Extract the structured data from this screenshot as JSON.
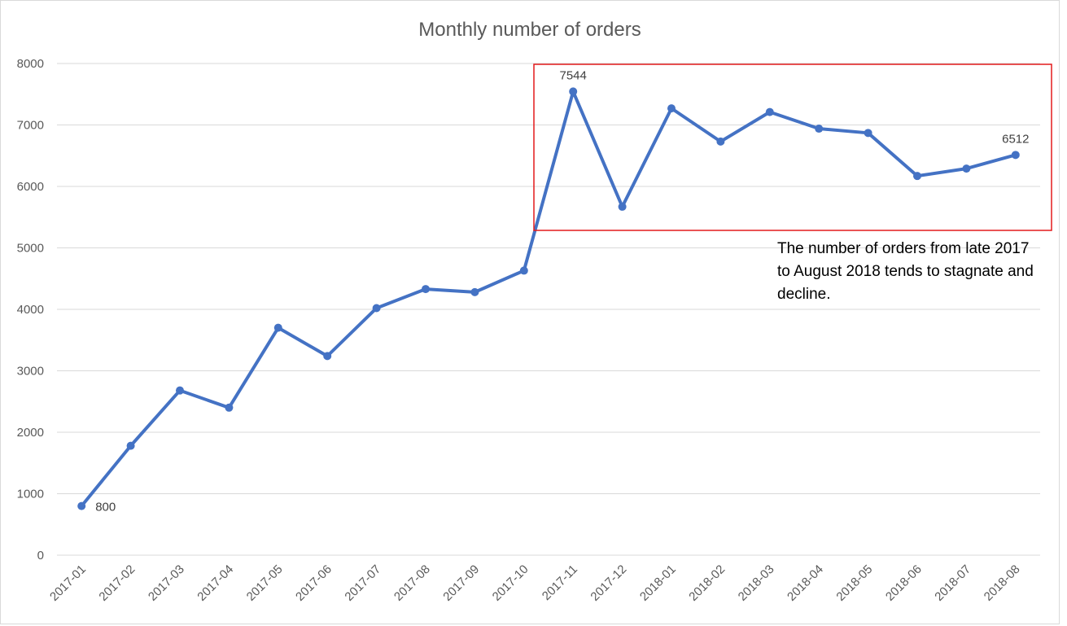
{
  "chart_data": {
    "type": "line",
    "title": "Monthly number of orders",
    "categories": [
      "2017-01",
      "2017-02",
      "2017-03",
      "2017-04",
      "2017-05",
      "2017-06",
      "2017-07",
      "2017-08",
      "2017-09",
      "2017-10",
      "2017-11",
      "2017-12",
      "2018-01",
      "2018-02",
      "2018-03",
      "2018-04",
      "2018-05",
      "2018-06",
      "2018-07",
      "2018-08"
    ],
    "series": [
      {
        "values": [
          800,
          1780,
          2680,
          2400,
          3700,
          3240,
          4020,
          4330,
          4280,
          4630,
          7544,
          5670,
          7270,
          6730,
          7210,
          6940,
          6870,
          6170,
          6290,
          6512
        ],
        "color": "#4472c4"
      }
    ],
    "ylim": [
      0,
      8000
    ],
    "yticks": [
      "0",
      "1000",
      "2000",
      "3000",
      "4000",
      "5000",
      "6000",
      "7000",
      "8000"
    ],
    "grid": true,
    "data_labels": [
      {
        "index": 0,
        "text": "800"
      },
      {
        "index": 10,
        "text": "7544"
      },
      {
        "index": 19,
        "text": "6512"
      }
    ],
    "annotation": "The number of orders from late 2017 to August 2018 tends to stagnate and decline.",
    "highlight_box_color": "#e31a1c"
  }
}
